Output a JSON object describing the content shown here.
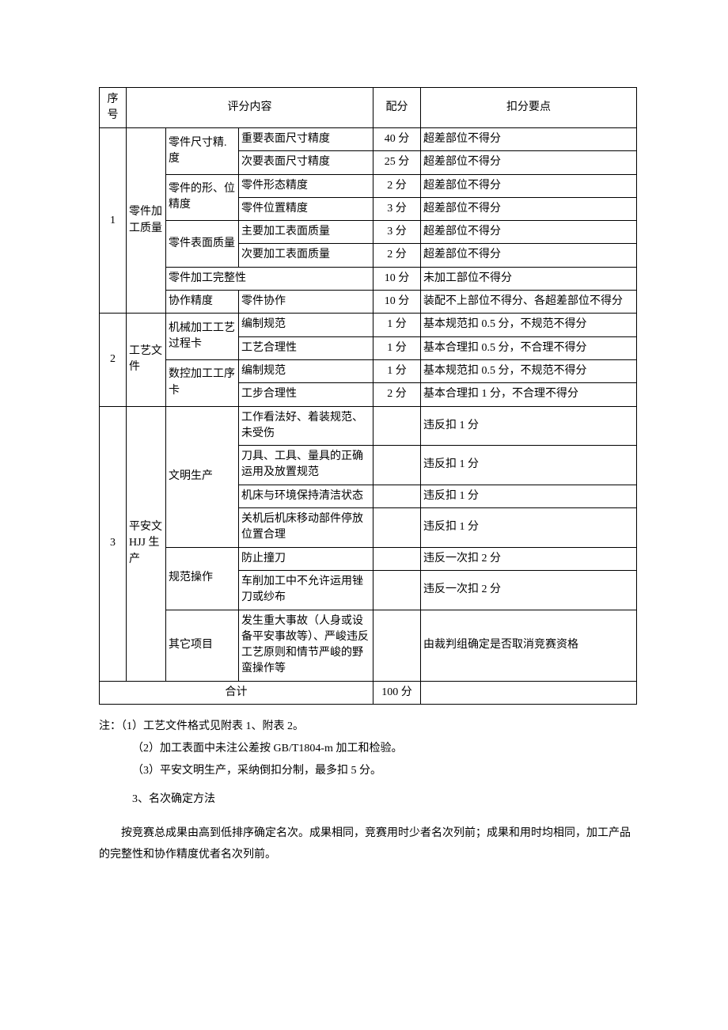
{
  "headers": {
    "idx": "序号",
    "content": "评分内容",
    "score": "配分",
    "note": "扣分要点"
  },
  "groups": [
    {
      "idx": "1",
      "category": "零件加工质量",
      "subs": [
        {
          "name": "零件尺寸精. 度",
          "items": [
            {
              "item": "重要表面尺寸精度",
              "score": "40 分",
              "note": "超差部位不得分"
            },
            {
              "item": "次要表面尺寸精度",
              "score": "25 分",
              "note": "超差部位不得分"
            }
          ]
        },
        {
          "name": "零件的形、位精度",
          "items": [
            {
              "item": "零件形态精度",
              "score": "2 分",
              "note": "超差部位不得分"
            },
            {
              "item": "零件位置精度",
              "score": "3 分",
              "note": "超差部位不得分"
            }
          ]
        },
        {
          "name": "零件表面质量",
          "items": [
            {
              "item": "主要加工表面质量",
              "score": "3 分",
              "note": "超差部位不得分"
            },
            {
              "item": "次要加工表面质量",
              "score": "2 分",
              "note": "超差部位不得分"
            }
          ]
        },
        {
          "name": "零件加工完整性",
          "full_row": true,
          "items": [
            {
              "item": "",
              "score": "10 分",
              "note": "未加工部位不得分"
            }
          ]
        },
        {
          "name": "协作精度",
          "items": [
            {
              "item": "零件协作",
              "score": "10 分",
              "note": "装配不上部位不得分、各超差部位不得分"
            }
          ]
        }
      ]
    },
    {
      "idx": "2",
      "category": "工艺文件",
      "subs": [
        {
          "name": "机械加工工艺过程卡",
          "items": [
            {
              "item": "编制规范",
              "score": "1 分",
              "note": "基本规范扣 0.5 分，不规范不得分"
            },
            {
              "item": "工艺合理性",
              "score": "1 分",
              "note": "基本合理扣 0.5 分，不合理不得分"
            }
          ]
        },
        {
          "name": "数控加工工序卡",
          "items": [
            {
              "item": "编制规范",
              "score": "1 分",
              "note": "基本规范扣 0.5 分，不规范不得分"
            },
            {
              "item": "工步合理性",
              "score": "2 分",
              "note": "基本合理扣 1 分，不合理不得分"
            }
          ]
        }
      ]
    },
    {
      "idx": "3",
      "category": "平安文HJJ 生产",
      "subs": [
        {
          "name": "文明生产",
          "items": [
            {
              "item": "工作看法好、着装规范、未受伤",
              "score": "",
              "note": "违反扣 1 分"
            },
            {
              "item": "刀具、工具、量具的正确运用及放置规范",
              "score": "",
              "note": "违反扣 1 分"
            },
            {
              "item": "机床与环境保持清洁状态",
              "score": "",
              "note": "违反扣 1 分"
            },
            {
              "item": "关机后机床移动部件停放位置合理",
              "score": "",
              "note": "违反扣 1 分"
            }
          ]
        },
        {
          "name": "规范操作",
          "items": [
            {
              "item": "防止撞刀",
              "score": "",
              "note": "违反一次扣 2 分"
            },
            {
              "item": "车削加工中不允许运用锉刀或纱布",
              "score": "",
              "note": "违反一次扣 2 分"
            }
          ]
        },
        {
          "name": "其它项目",
          "items": [
            {
              "item": "发生重大事故（人身或设备平安事故等）、严峻违反工艺原则和情节严峻的野蛮操作等",
              "score": "",
              "note": "由裁判组确定是否取消竞赛资格"
            }
          ]
        }
      ]
    }
  ],
  "total": {
    "label": "合计",
    "score": "100 分"
  },
  "notes": {
    "prefix": "注：",
    "n1": "（1）工艺文件格式见附表 1、附表 2。",
    "n2": "（2）加工表面中未注公差按 GB/T1804-m 加工和检验。",
    "n3": "（3）平安文明生产，采纳倒扣分制，最多扣 5 分。"
  },
  "section3": "3、名次确定方法",
  "para": "按竞赛总成果由高到低排序确定名次。成果相同，竞赛用时少者名次列前；成果和用时均相同，加工产品的完整性和协作精度优者名次列前。"
}
